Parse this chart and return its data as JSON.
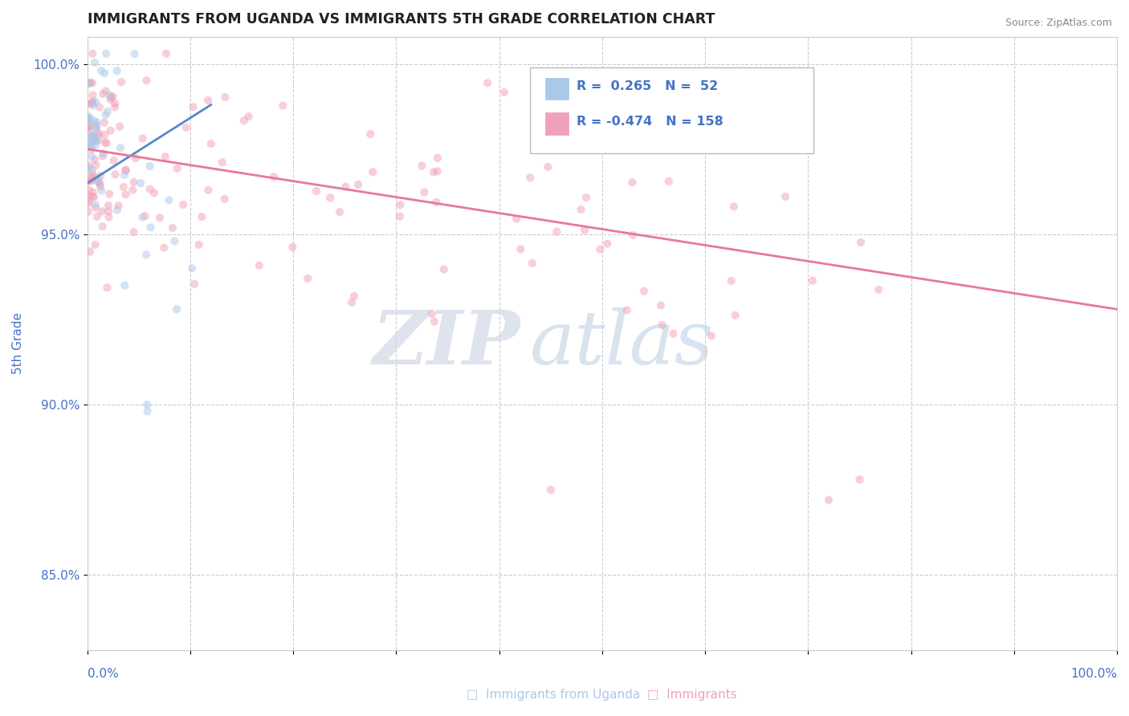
{
  "title": "IMMIGRANTS FROM UGANDA VS IMMIGRANTS 5TH GRADE CORRELATION CHART",
  "source_text": "Source: ZipAtlas.com",
  "ylabel": "5th Grade",
  "legend_series": [
    {
      "label": "Immigrants from Uganda",
      "R": 0.265,
      "N": 52,
      "color": "#aac8e8"
    },
    {
      "label": "Immigrants",
      "R": -0.474,
      "N": 158,
      "color": "#f0a0b8"
    }
  ],
  "xlim": [
    0.0,
    1.0
  ],
  "ylim": [
    0.828,
    1.008
  ],
  "y_ticks": [
    0.85,
    0.9,
    0.95,
    1.0
  ],
  "y_tick_labels": [
    "85.0%",
    "90.0%",
    "95.0%",
    "100.0%"
  ],
  "title_color": "#222222",
  "source_color": "#888888",
  "tick_color": "#4472c4",
  "grid_color": "#cccccc",
  "background_color": "#ffffff",
  "scatter_alpha": 0.5,
  "scatter_size": 55,
  "blue_line_x": [
    0.0,
    0.12
  ],
  "blue_line_y": [
    0.965,
    0.988
  ],
  "pink_line_x": [
    0.0,
    1.0
  ],
  "pink_line_y": [
    0.975,
    0.928
  ]
}
